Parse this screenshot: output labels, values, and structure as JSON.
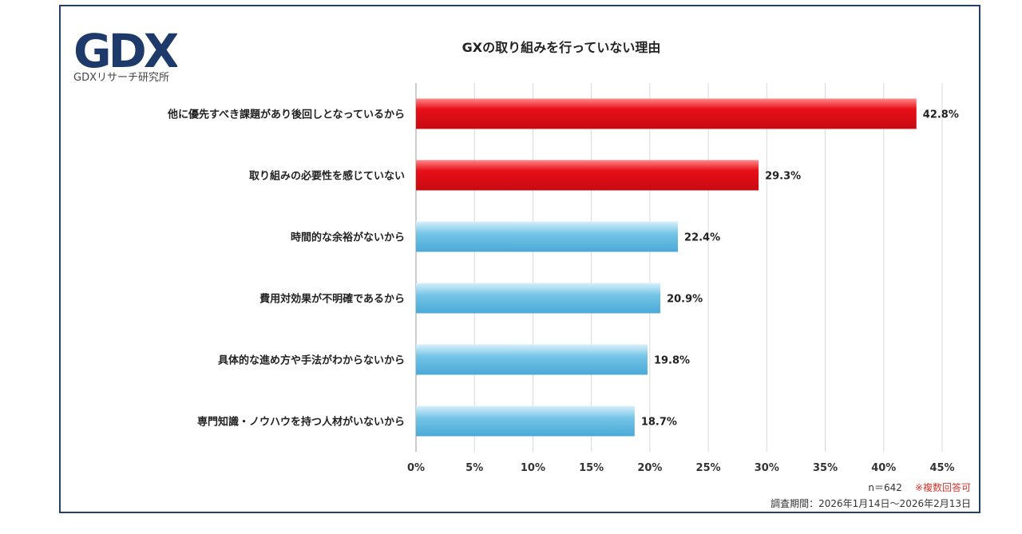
{
  "brand": {
    "logo_text": "GDX",
    "logo_subtitle": "GDXリサーチ研究所",
    "logo_color": "#1d3a6b"
  },
  "chart_data": {
    "type": "bar",
    "orientation": "horizontal",
    "title": "GXの取り組みを行っていない理由",
    "categories": [
      "他に優先すべき課題があり後回しとなっているから",
      "取り組みの必要性を感じていない",
      "時間的な余裕がないから",
      "費用対効果が不明確であるから",
      "具体的な進め方や手法がわからないから",
      "専門知識・ノウハウを持つ人材がいないから"
    ],
    "values": [
      42.8,
      29.3,
      22.4,
      20.9,
      19.8,
      18.7
    ],
    "value_labels": [
      "42.8%",
      "29.3%",
      "22.4%",
      "20.9%",
      "19.8%",
      "18.7%"
    ],
    "bar_colors": [
      "#e0121b",
      "#e0121b",
      "#5ab4dc",
      "#5ab4dc",
      "#5ab4dc",
      "#5ab4dc"
    ],
    "xlim": [
      0,
      45
    ],
    "x_ticks": [
      0,
      5,
      10,
      15,
      20,
      25,
      30,
      35,
      40,
      45
    ],
    "x_tick_labels": [
      "0%",
      "5%",
      "10%",
      "15%",
      "20%",
      "25%",
      "30%",
      "35%",
      "40%",
      "45%"
    ],
    "grid": true
  },
  "footer": {
    "sample": "n＝642",
    "note": "※複数回答可",
    "period": "調査期間：2026年1月14日～2026年2月13日"
  }
}
